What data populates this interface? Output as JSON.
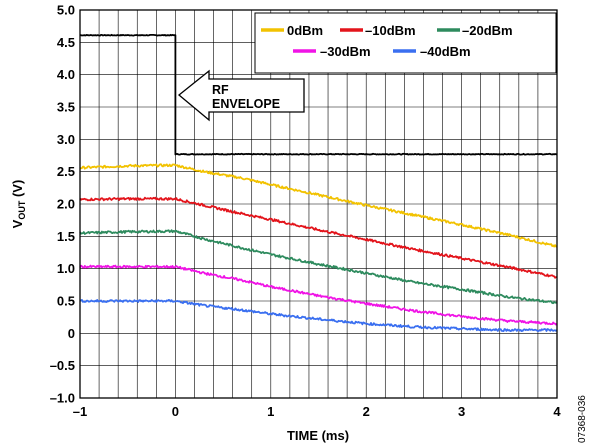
{
  "chart_data": {
    "type": "line",
    "xlabel": "TIME (ms)",
    "ylabel_main": "V",
    "ylabel_sub": "OUT",
    "ylabel_unit": " (V)",
    "xlim": [
      -1,
      4
    ],
    "ylim": [
      -1,
      5
    ],
    "xticks": [
      -1,
      0,
      1,
      2,
      3,
      4
    ],
    "xtick_labels": [
      "–1",
      "0",
      "1",
      "2",
      "3",
      "4"
    ],
    "yticks": [
      -1,
      -0.5,
      0,
      0.5,
      1,
      1.5,
      2,
      2.5,
      3,
      3.5,
      4,
      4.5,
      5
    ],
    "ytick_labels": [
      "–1.0",
      "–0.5",
      "0",
      "0.5",
      "1.0",
      "1.5",
      "2.0",
      "2.5",
      "3.0",
      "3.5",
      "4.0",
      "4.5",
      "5.0"
    ],
    "grid": true,
    "x_grid_step": 0.2,
    "legend_position": "top-right",
    "legend": [
      "0dBm",
      "–10dBm",
      "–20dBm",
      "–30dBm",
      "–40dBm"
    ],
    "annotation": {
      "lines": [
        "RF",
        "ENVELOPE"
      ]
    },
    "figure_id": "07368-036",
    "series": [
      {
        "name": "RF ENVELOPE",
        "color": "#000000",
        "x": [
          -1,
          0,
          0,
          4
        ],
        "y": [
          4.61,
          4.61,
          2.77,
          2.77
        ]
      },
      {
        "name": "0dBm",
        "color": "#f2c200",
        "x": [
          -1,
          -0.5,
          0,
          0.3,
          0.7,
          1,
          1.5,
          2,
          2.5,
          3,
          3.5,
          4
        ],
        "y": [
          2.56,
          2.59,
          2.6,
          2.5,
          2.4,
          2.3,
          2.14,
          1.98,
          1.83,
          1.68,
          1.52,
          1.34
        ]
      },
      {
        "name": "–10dBm",
        "color": "#e3141b",
        "x": [
          -1,
          -0.5,
          0,
          0.3,
          0.7,
          1,
          1.5,
          2,
          2.5,
          3,
          3.5,
          4
        ],
        "y": [
          2.07,
          2.08,
          2.08,
          1.98,
          1.85,
          1.76,
          1.6,
          1.45,
          1.3,
          1.16,
          1.02,
          0.87
        ]
      },
      {
        "name": "–20dBm",
        "color": "#2e8b5e",
        "x": [
          -1,
          -0.5,
          0,
          0.3,
          0.7,
          1,
          1.5,
          2,
          2.5,
          3,
          3.5,
          4
        ],
        "y": [
          1.55,
          1.57,
          1.58,
          1.46,
          1.32,
          1.22,
          1.07,
          0.93,
          0.79,
          0.68,
          0.56,
          0.47
        ]
      },
      {
        "name": "–30dBm",
        "color": "#f013e6",
        "x": [
          -1,
          -0.5,
          0,
          0.3,
          0.7,
          1,
          1.5,
          2,
          2.5,
          3,
          3.5,
          4
        ],
        "y": [
          1.03,
          1.03,
          1.03,
          0.93,
          0.82,
          0.72,
          0.58,
          0.46,
          0.35,
          0.26,
          0.19,
          0.15
        ]
      },
      {
        "name": "–40dBm",
        "color": "#3a6ff0",
        "x": [
          -1,
          -0.5,
          0,
          0.3,
          0.7,
          1,
          1.5,
          2,
          2.5,
          3,
          3.5,
          4
        ],
        "y": [
          0.5,
          0.5,
          0.5,
          0.43,
          0.36,
          0.3,
          0.22,
          0.15,
          0.1,
          0.07,
          0.05,
          0.05
        ]
      }
    ]
  }
}
